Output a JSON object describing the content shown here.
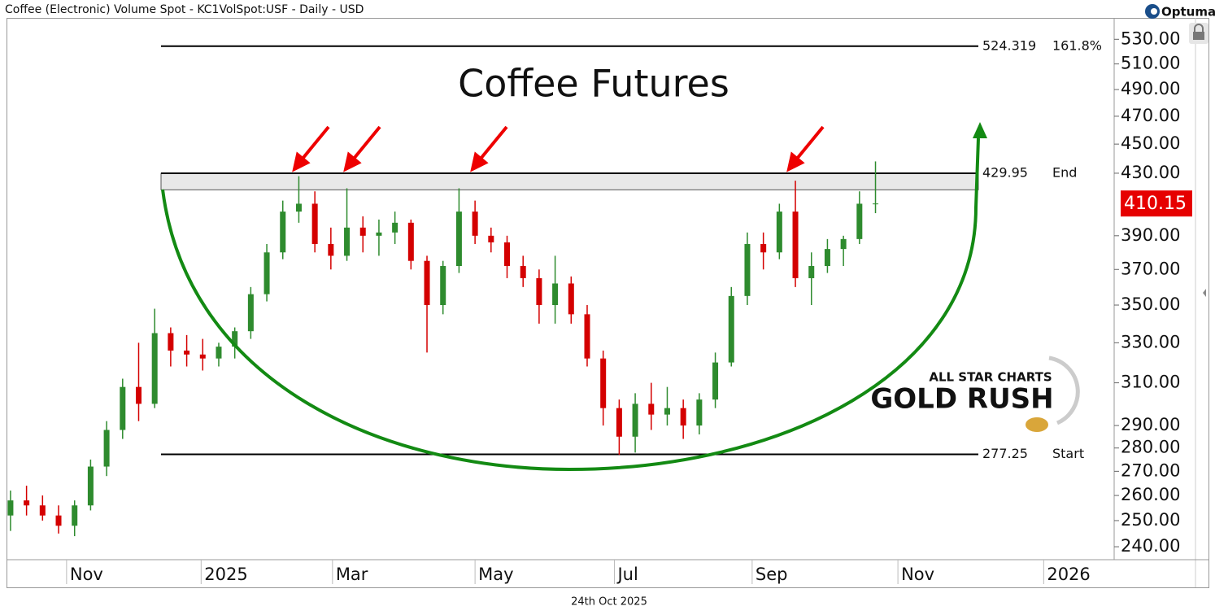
{
  "chart_data": {
    "type": "candlestick",
    "header": "Coffee (Electronic) Volume Spot - KC1VolSpot:USF - Daily - USD",
    "title": "Coffee Futures",
    "brand": "Optuma",
    "date_label": "24th Oct 2025",
    "watermark": [
      "ALL STAR CHARTS",
      "GOLD RUSH"
    ],
    "log_scale": true,
    "up_color": "#2e8b2e",
    "down_color": "#d40000",
    "x": [
      -3.5,
      -2.5,
      -1.5,
      -0.5,
      0.5,
      1.5,
      2.5,
      3.5,
      4.5,
      5.5,
      6.5,
      7.5,
      8.5,
      9.5,
      10.5,
      11.5,
      12.5,
      13.5,
      14.5,
      15.5,
      16.5,
      17.5,
      18.5,
      19.5,
      20.5,
      21.5,
      22.5,
      23.5,
      24.5,
      25.5,
      26.5,
      27.5,
      28.5,
      29.5,
      30.5,
      31.5,
      32.5,
      33.5,
      34.5,
      35.5,
      36.5,
      37.5,
      38.5,
      39.5,
      40.5,
      41.5,
      42.5,
      43.5,
      44.5,
      45.5,
      46.5,
      47.5,
      48.5,
      49.5,
      50.5
    ],
    "open": [
      252,
      258,
      256,
      252,
      248,
      256,
      272,
      288,
      308,
      300,
      335,
      326,
      324,
      322,
      328,
      336,
      356,
      380,
      405,
      410,
      385,
      378,
      395,
      390,
      392,
      398,
      375,
      350,
      372,
      405,
      390,
      386,
      372,
      365,
      350,
      362,
      345,
      322,
      298,
      285,
      300,
      295,
      298,
      290,
      302,
      320,
      355,
      385,
      380,
      405,
      365,
      372,
      382,
      388,
      410
    ],
    "high": [
      262,
      264,
      260,
      256,
      258,
      275,
      292,
      312,
      330,
      348,
      338,
      334,
      332,
      330,
      338,
      360,
      385,
      412,
      428,
      418,
      395,
      420,
      402,
      400,
      405,
      400,
      378,
      375,
      420,
      412,
      395,
      390,
      378,
      370,
      378,
      366,
      350,
      326,
      302,
      305,
      310,
      308,
      302,
      305,
      325,
      360,
      392,
      392,
      410,
      425,
      380,
      388,
      390,
      418,
      438
    ],
    "low": [
      246,
      252,
      250,
      245,
      244,
      254,
      268,
      284,
      292,
      298,
      318,
      318,
      316,
      318,
      322,
      332,
      352,
      376,
      398,
      380,
      370,
      375,
      380,
      378,
      385,
      370,
      325,
      345,
      368,
      385,
      380,
      365,
      360,
      340,
      340,
      340,
      318,
      290,
      277,
      278,
      288,
      290,
      284,
      286,
      298,
      318,
      350,
      370,
      376,
      360,
      350,
      368,
      372,
      385,
      404
    ],
    "close": [
      258,
      256,
      252,
      248,
      256,
      272,
      288,
      308,
      300,
      335,
      326,
      324,
      322,
      328,
      336,
      356,
      380,
      405,
      410,
      385,
      378,
      395,
      390,
      392,
      398,
      375,
      350,
      372,
      405,
      390,
      386,
      372,
      365,
      350,
      362,
      345,
      322,
      298,
      285,
      300,
      295,
      298,
      290,
      302,
      320,
      355,
      385,
      380,
      405,
      365,
      372,
      382,
      388,
      410,
      410.15
    ],
    "last_price": 410.15,
    "zone": [
      419,
      429.95
    ],
    "levels": [
      {
        "price": 524.319,
        "tag": "161.8%"
      },
      {
        "price": 429.95,
        "tag": "End"
      },
      {
        "price": 277.25,
        "tag": "Start"
      }
    ],
    "xlim": [
      -3.75,
      65.4
    ],
    "xticks": [
      {
        "value": 0,
        "label": "Nov"
      },
      {
        "value": 8.4,
        "label": "2025"
      },
      {
        "value": 16.6,
        "label": "Mar"
      },
      {
        "value": 25.5,
        "label": "May"
      },
      {
        "value": 34.2,
        "label": "Jul"
      },
      {
        "value": 42.8,
        "label": "Sep"
      },
      {
        "value": 51.9,
        "label": "Nov"
      },
      {
        "value": 61,
        "label": "2026"
      }
    ],
    "ylim": [
      235.2,
      548
    ],
    "yticks": [
      {
        "value": 240,
        "label": "240.00"
      },
      {
        "value": 250,
        "label": "250.00"
      },
      {
        "value": 260,
        "label": "260.00"
      },
      {
        "value": 270,
        "label": "270.00"
      },
      {
        "value": 280,
        "label": "280.00"
      },
      {
        "value": 290,
        "label": "290.00"
      },
      {
        "value": 310,
        "label": "310.00"
      },
      {
        "value": 330,
        "label": "330.00"
      },
      {
        "value": 350,
        "label": "350.00"
      },
      {
        "value": 370,
        "label": "370.00"
      },
      {
        "value": 390,
        "label": "390.00"
      },
      {
        "value": 430,
        "label": "430.00"
      },
      {
        "value": 450,
        "label": "450.00"
      },
      {
        "value": 470,
        "label": "470.00"
      },
      {
        "value": 490,
        "label": "490.00"
      },
      {
        "value": 510,
        "label": "510.00"
      },
      {
        "value": 530,
        "label": "530.00"
      }
    ]
  }
}
